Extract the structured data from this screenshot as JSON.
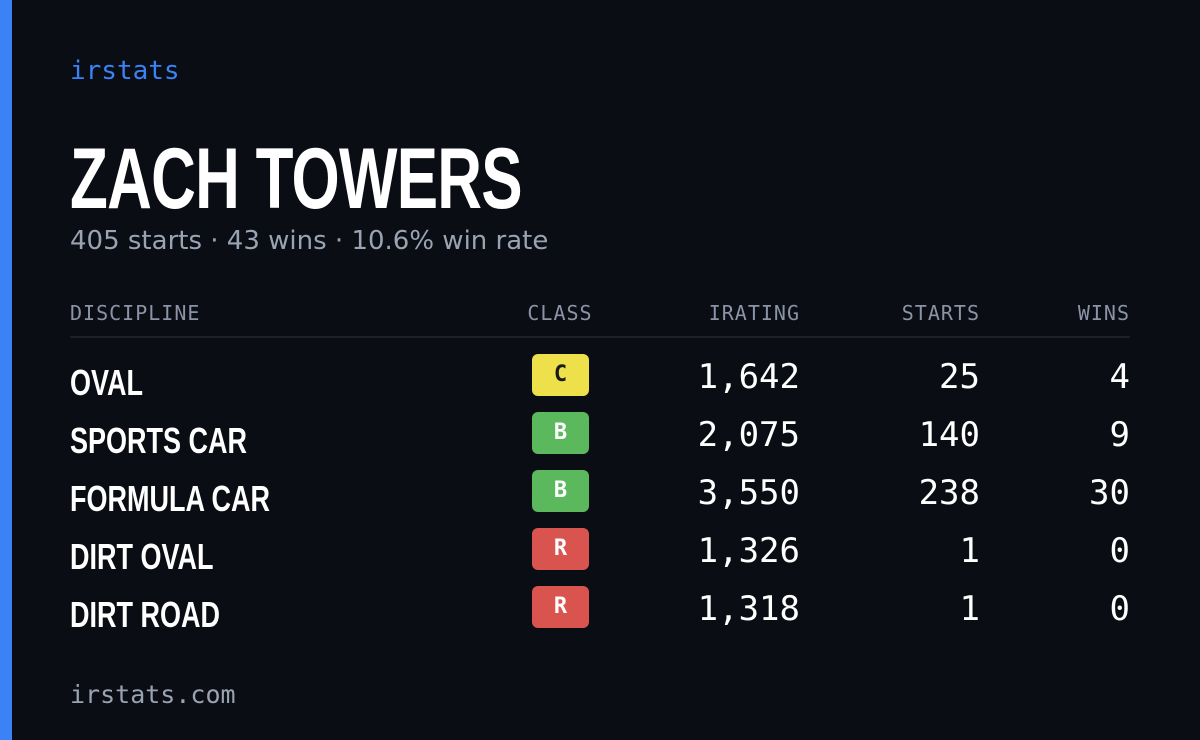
{
  "brand": "irstats",
  "title": "ZACH TOWERS",
  "summary": "405 starts · 43 wins · 10.6% win rate",
  "table": {
    "header": [
      "DISCIPLINE",
      "CLASS",
      "IRATING",
      "STARTS",
      "WINS"
    ],
    "rows": [
      {
        "discipline": "OVAL",
        "class": "C",
        "class_color": "#ede04a",
        "class_text_color": "#1a1a1a",
        "irating": "1,642",
        "starts": "25",
        "wins": "4"
      },
      {
        "discipline": "SPORTS CAR",
        "class": "B",
        "class_color": "#5cb85c",
        "class_text_color": "#ffffff",
        "irating": "2,075",
        "starts": "140",
        "wins": "9"
      },
      {
        "discipline": "FORMULA CAR",
        "class": "B",
        "class_color": "#5cb85c",
        "class_text_color": "#ffffff",
        "irating": "3,550",
        "starts": "238",
        "wins": "30"
      },
      {
        "discipline": "DIRT OVAL",
        "class": "R",
        "class_color": "#d9534f",
        "class_text_color": "#ffffff",
        "irating": "1,326",
        "starts": "1",
        "wins": "0"
      },
      {
        "discipline": "DIRT ROAD",
        "class": "R",
        "class_color": "#d9534f",
        "class_text_color": "#ffffff",
        "irating": "1,318",
        "starts": "1",
        "wins": "0"
      }
    ]
  },
  "footer": "irstats.com"
}
